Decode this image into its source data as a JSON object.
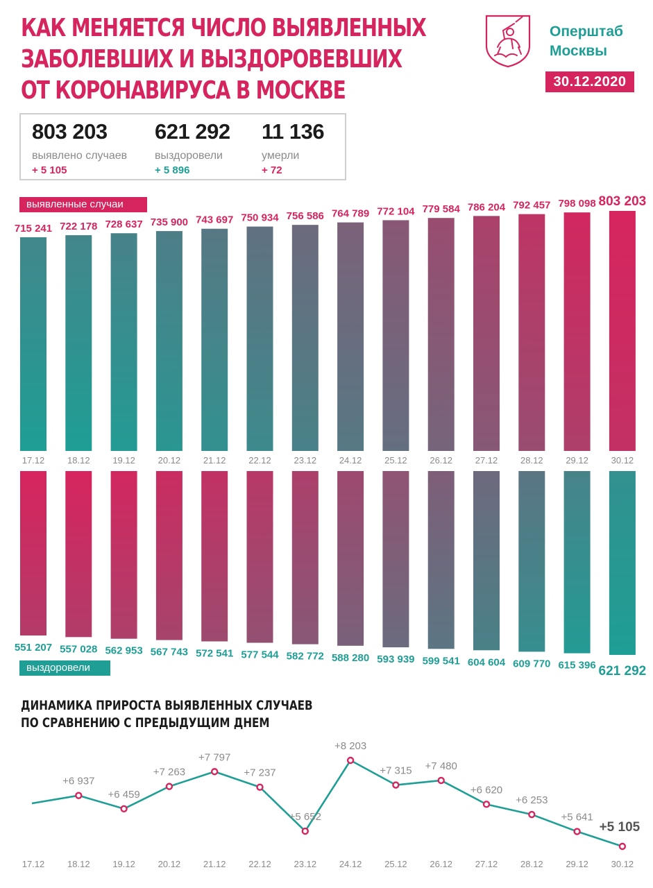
{
  "header": {
    "title_lines": [
      "КАК МЕНЯЕТСЯ ЧИСЛО ВЫЯВЛЕННЫХ",
      "ЗАБОЛЕВШИХ И ВЫЗДОРОВЕВШИХ",
      "ОТ КОРОНАВИРУСА В МОСКВЕ"
    ],
    "org_lines": [
      "Оперштаб",
      "Москвы"
    ],
    "date": "30.12.2020",
    "logo_icon": "moscow-coat-of-arms-icon"
  },
  "summary": {
    "cases": {
      "value": "803 203",
      "label": "выявлено случаев",
      "delta": "+ 5 105"
    },
    "recovered": {
      "value": "621 292",
      "label": "выздоровели",
      "delta": "+ 5 896"
    },
    "deaths": {
      "value": "11 136",
      "label": "умерли",
      "delta": "+ 72"
    }
  },
  "colors": {
    "accent_pink": "#d6245e",
    "accent_teal": "#1e9e95",
    "axis_text": "#8a8a8a"
  },
  "chart_data": [
    {
      "type": "bar",
      "tag": "выявленные случаи",
      "categories": [
        "17.12",
        "18.12",
        "19.12",
        "20.12",
        "21.12",
        "22.12",
        "23.12",
        "24.12",
        "25.12",
        "26.12",
        "27.12",
        "28.12",
        "29.12",
        "30.12"
      ],
      "values": [
        715241,
        722178,
        728637,
        735900,
        743697,
        750934,
        756586,
        764789,
        772104,
        779584,
        786204,
        792457,
        798098,
        803203
      ],
      "labels": [
        "715 241",
        "722 178",
        "728 637",
        "735 900",
        "743 697",
        "750 934",
        "756 586",
        "764 789",
        "772 104",
        "779 584",
        "786 204",
        "792 457",
        "798 098",
        "803 203"
      ]
    },
    {
      "type": "bar",
      "tag": "выздоровели",
      "categories": [
        "17.12",
        "18.12",
        "19.12",
        "20.12",
        "21.12",
        "22.12",
        "23.12",
        "24.12",
        "25.12",
        "26.12",
        "27.12",
        "28.12",
        "29.12",
        "30.12"
      ],
      "values": [
        551207,
        557028,
        562953,
        567743,
        572541,
        577544,
        582772,
        588280,
        593939,
        599541,
        604604,
        609770,
        615396,
        621292
      ],
      "labels": [
        "551 207",
        "557 028",
        "562 953",
        "567 743",
        "572 541",
        "577 544",
        "582 772",
        "588 280",
        "593 939",
        "599 541",
        "604 604",
        "609 770",
        "615 396",
        "621 292"
      ]
    },
    {
      "type": "line",
      "title_lines": [
        "ДИНАМИКА ПРИРОСТА ВЫЯВЛЕННЫХ СЛУЧАЕВ",
        "ПО СРАВНЕНИЮ С ПРЕДЫДУЩИМ ДНЕМ"
      ],
      "categories": [
        "17.12",
        "18.12",
        "19.12",
        "20.12",
        "21.12",
        "22.12",
        "23.12",
        "24.12",
        "25.12",
        "26.12",
        "27.12",
        "28.12",
        "29.12",
        "30.12"
      ],
      "values": [
        null,
        6937,
        6459,
        7263,
        7797,
        7237,
        5652,
        8203,
        7315,
        7480,
        6620,
        6253,
        5641,
        5105
      ],
      "labels": [
        "",
        "+6 937",
        "+6 459",
        "+7 263",
        "+7 797",
        "+7 237",
        "+5 652",
        "+8 203",
        "+7 315",
        "+7 480",
        "+6 620",
        "+6 253",
        "+5 641",
        "+5 105"
      ]
    }
  ]
}
